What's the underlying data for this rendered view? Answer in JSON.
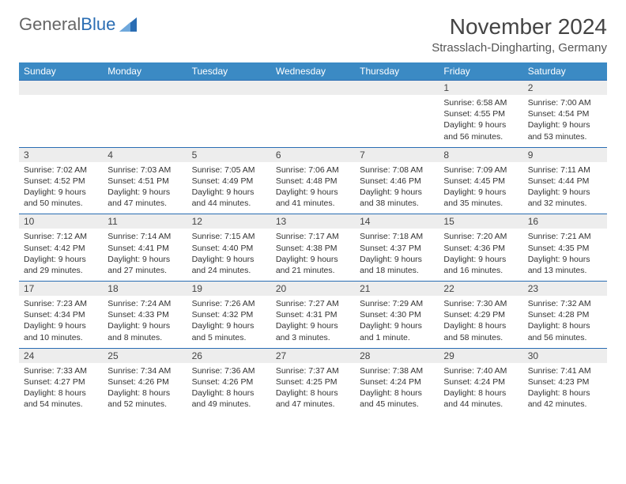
{
  "logo": {
    "part1": "General",
    "part2": "Blue"
  },
  "title": "November 2024",
  "location": "Strasslach-Dingharting, Germany",
  "weekdays": [
    "Sunday",
    "Monday",
    "Tuesday",
    "Wednesday",
    "Thursday",
    "Friday",
    "Saturday"
  ],
  "style": {
    "header_bg": "#3b8ac4",
    "header_fg": "#ffffff",
    "daynum_bg": "#ededed",
    "border_color": "#2a6db3",
    "page_bg": "#ffffff",
    "text_color": "#333333",
    "title_fontsize": 28,
    "location_fontsize": 15,
    "weekday_fontsize": 12,
    "daynum_fontsize": 12,
    "detail_fontsize": 10.5,
    "columns": 7
  },
  "weeks": [
    [
      null,
      null,
      null,
      null,
      null,
      {
        "n": "1",
        "sunrise": "Sunrise: 6:58 AM",
        "sunset": "Sunset: 4:55 PM",
        "daylight": "Daylight: 9 hours and 56 minutes."
      },
      {
        "n": "2",
        "sunrise": "Sunrise: 7:00 AM",
        "sunset": "Sunset: 4:54 PM",
        "daylight": "Daylight: 9 hours and 53 minutes."
      }
    ],
    [
      {
        "n": "3",
        "sunrise": "Sunrise: 7:02 AM",
        "sunset": "Sunset: 4:52 PM",
        "daylight": "Daylight: 9 hours and 50 minutes."
      },
      {
        "n": "4",
        "sunrise": "Sunrise: 7:03 AM",
        "sunset": "Sunset: 4:51 PM",
        "daylight": "Daylight: 9 hours and 47 minutes."
      },
      {
        "n": "5",
        "sunrise": "Sunrise: 7:05 AM",
        "sunset": "Sunset: 4:49 PM",
        "daylight": "Daylight: 9 hours and 44 minutes."
      },
      {
        "n": "6",
        "sunrise": "Sunrise: 7:06 AM",
        "sunset": "Sunset: 4:48 PM",
        "daylight": "Daylight: 9 hours and 41 minutes."
      },
      {
        "n": "7",
        "sunrise": "Sunrise: 7:08 AM",
        "sunset": "Sunset: 4:46 PM",
        "daylight": "Daylight: 9 hours and 38 minutes."
      },
      {
        "n": "8",
        "sunrise": "Sunrise: 7:09 AM",
        "sunset": "Sunset: 4:45 PM",
        "daylight": "Daylight: 9 hours and 35 minutes."
      },
      {
        "n": "9",
        "sunrise": "Sunrise: 7:11 AM",
        "sunset": "Sunset: 4:44 PM",
        "daylight": "Daylight: 9 hours and 32 minutes."
      }
    ],
    [
      {
        "n": "10",
        "sunrise": "Sunrise: 7:12 AM",
        "sunset": "Sunset: 4:42 PM",
        "daylight": "Daylight: 9 hours and 29 minutes."
      },
      {
        "n": "11",
        "sunrise": "Sunrise: 7:14 AM",
        "sunset": "Sunset: 4:41 PM",
        "daylight": "Daylight: 9 hours and 27 minutes."
      },
      {
        "n": "12",
        "sunrise": "Sunrise: 7:15 AM",
        "sunset": "Sunset: 4:40 PM",
        "daylight": "Daylight: 9 hours and 24 minutes."
      },
      {
        "n": "13",
        "sunrise": "Sunrise: 7:17 AM",
        "sunset": "Sunset: 4:38 PM",
        "daylight": "Daylight: 9 hours and 21 minutes."
      },
      {
        "n": "14",
        "sunrise": "Sunrise: 7:18 AM",
        "sunset": "Sunset: 4:37 PM",
        "daylight": "Daylight: 9 hours and 18 minutes."
      },
      {
        "n": "15",
        "sunrise": "Sunrise: 7:20 AM",
        "sunset": "Sunset: 4:36 PM",
        "daylight": "Daylight: 9 hours and 16 minutes."
      },
      {
        "n": "16",
        "sunrise": "Sunrise: 7:21 AM",
        "sunset": "Sunset: 4:35 PM",
        "daylight": "Daylight: 9 hours and 13 minutes."
      }
    ],
    [
      {
        "n": "17",
        "sunrise": "Sunrise: 7:23 AM",
        "sunset": "Sunset: 4:34 PM",
        "daylight": "Daylight: 9 hours and 10 minutes."
      },
      {
        "n": "18",
        "sunrise": "Sunrise: 7:24 AM",
        "sunset": "Sunset: 4:33 PM",
        "daylight": "Daylight: 9 hours and 8 minutes."
      },
      {
        "n": "19",
        "sunrise": "Sunrise: 7:26 AM",
        "sunset": "Sunset: 4:32 PM",
        "daylight": "Daylight: 9 hours and 5 minutes."
      },
      {
        "n": "20",
        "sunrise": "Sunrise: 7:27 AM",
        "sunset": "Sunset: 4:31 PM",
        "daylight": "Daylight: 9 hours and 3 minutes."
      },
      {
        "n": "21",
        "sunrise": "Sunrise: 7:29 AM",
        "sunset": "Sunset: 4:30 PM",
        "daylight": "Daylight: 9 hours and 1 minute."
      },
      {
        "n": "22",
        "sunrise": "Sunrise: 7:30 AM",
        "sunset": "Sunset: 4:29 PM",
        "daylight": "Daylight: 8 hours and 58 minutes."
      },
      {
        "n": "23",
        "sunrise": "Sunrise: 7:32 AM",
        "sunset": "Sunset: 4:28 PM",
        "daylight": "Daylight: 8 hours and 56 minutes."
      }
    ],
    [
      {
        "n": "24",
        "sunrise": "Sunrise: 7:33 AM",
        "sunset": "Sunset: 4:27 PM",
        "daylight": "Daylight: 8 hours and 54 minutes."
      },
      {
        "n": "25",
        "sunrise": "Sunrise: 7:34 AM",
        "sunset": "Sunset: 4:26 PM",
        "daylight": "Daylight: 8 hours and 52 minutes."
      },
      {
        "n": "26",
        "sunrise": "Sunrise: 7:36 AM",
        "sunset": "Sunset: 4:26 PM",
        "daylight": "Daylight: 8 hours and 49 minutes."
      },
      {
        "n": "27",
        "sunrise": "Sunrise: 7:37 AM",
        "sunset": "Sunset: 4:25 PM",
        "daylight": "Daylight: 8 hours and 47 minutes."
      },
      {
        "n": "28",
        "sunrise": "Sunrise: 7:38 AM",
        "sunset": "Sunset: 4:24 PM",
        "daylight": "Daylight: 8 hours and 45 minutes."
      },
      {
        "n": "29",
        "sunrise": "Sunrise: 7:40 AM",
        "sunset": "Sunset: 4:24 PM",
        "daylight": "Daylight: 8 hours and 44 minutes."
      },
      {
        "n": "30",
        "sunrise": "Sunrise: 7:41 AM",
        "sunset": "Sunset: 4:23 PM",
        "daylight": "Daylight: 8 hours and 42 minutes."
      }
    ]
  ]
}
